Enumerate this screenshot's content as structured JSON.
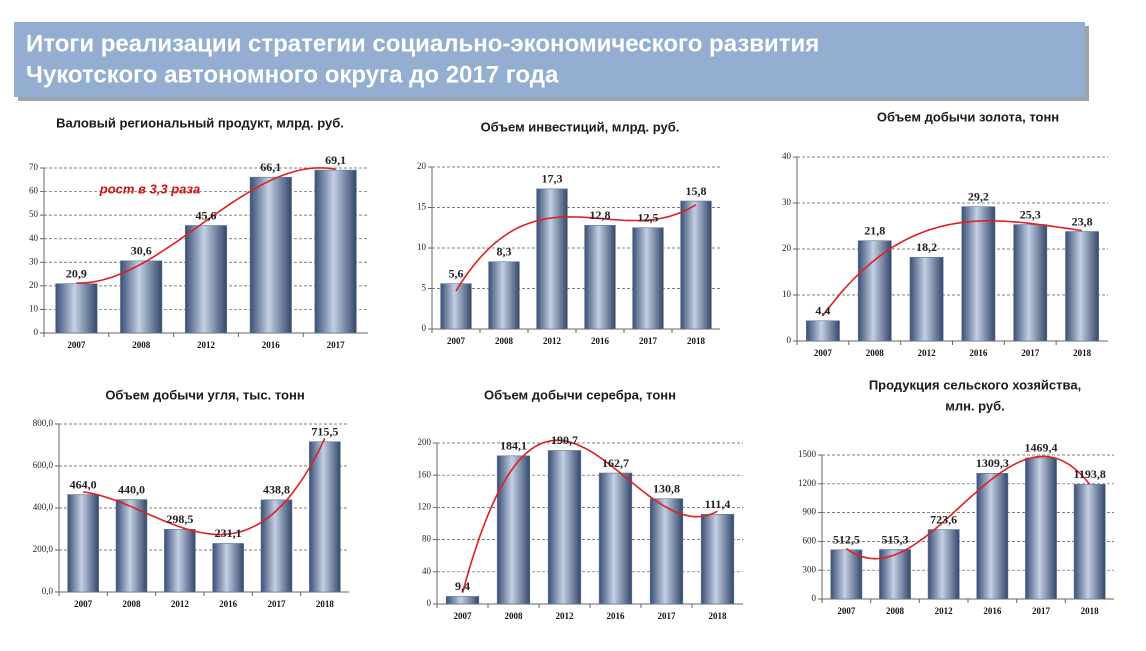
{
  "header": {
    "title": [
      "Итоги реализации стратегии социально-экономического развития",
      "Чукотского автономного округа до 2017 года"
    ]
  },
  "chart_data": [
    {
      "type": "bar",
      "title": "Валовый региональный продукт, млрд. руб.",
      "annotation": "рост в 3,3 раза",
      "categories": [
        "2007",
        "2008",
        "2012",
        "2016",
        "2017"
      ],
      "values": [
        20.9,
        30.6,
        45.6,
        66.1,
        69.1
      ],
      "value_labels": [
        "20,9",
        "30,6",
        "45,6",
        "66,1",
        "69,1"
      ],
      "ylim": [
        0,
        70
      ],
      "yticks": [
        0,
        10,
        20,
        30,
        40,
        50,
        60,
        70
      ],
      "grid": true,
      "trendline": true,
      "color": "#5b7298"
    },
    {
      "type": "bar",
      "title": "Объем инвестиций, млрд. руб.",
      "categories": [
        "2007",
        "2008",
        "2012",
        "2016",
        "2017",
        "2018"
      ],
      "values": [
        5.6,
        8.3,
        17.3,
        12.8,
        12.5,
        15.8
      ],
      "value_labels": [
        "5,6",
        "8,3",
        "17,3",
        "12,8",
        "12,5",
        "15,8"
      ],
      "ylim": [
        0,
        20
      ],
      "yticks": [
        0,
        5,
        10,
        15,
        20
      ],
      "grid": true,
      "trendline": true,
      "color": "#5b7298"
    },
    {
      "type": "bar",
      "title": "Объем добычи золота, тонн",
      "categories": [
        "2007",
        "2008",
        "2012",
        "2016",
        "2017",
        "2018"
      ],
      "values": [
        4.4,
        21.8,
        18.2,
        29.2,
        25.3,
        23.8
      ],
      "value_labels": [
        "4,4",
        "21,8",
        "18,2",
        "29,2",
        "25,3",
        "23,8"
      ],
      "ylim": [
        0,
        40
      ],
      "yticks": [
        0,
        10,
        20,
        30,
        40
      ],
      "grid": true,
      "trendline": true,
      "color": "#5b7298"
    },
    {
      "type": "bar",
      "title": "Объем добычи угля, тыс. тонн",
      "categories": [
        "2007",
        "2008",
        "2012",
        "2016",
        "2017",
        "2018"
      ],
      "values": [
        464.0,
        440.0,
        298.5,
        231.1,
        438.8,
        715.5
      ],
      "value_labels": [
        "464,0",
        "440,0",
        "298,5",
        "231,1",
        "438,8",
        "715,5"
      ],
      "ylim": [
        0,
        800
      ],
      "yticks": [
        {
          "value": 0,
          "label": "0,0"
        },
        {
          "value": 200,
          "label": "200,0"
        },
        {
          "value": 400,
          "label": "400,0"
        },
        {
          "value": 600,
          "label": "600,0"
        },
        {
          "value": 800,
          "label": "800,0"
        }
      ],
      "grid": true,
      "trendline": true,
      "color": "#5b7298"
    },
    {
      "type": "bar",
      "title": "Объем добычи серебра, тонн",
      "categories": [
        "2007",
        "2008",
        "2012",
        "2016",
        "2017",
        "2018"
      ],
      "values": [
        9.4,
        184.1,
        190.7,
        162.7,
        130.8,
        111.4
      ],
      "value_labels": [
        "9,4",
        "184,1",
        "190,7",
        "162,7",
        "130,8",
        "111,4"
      ],
      "ylim": [
        0,
        200
      ],
      "yticks": [
        0,
        40,
        80,
        120,
        160,
        200
      ],
      "grid": true,
      "trendline": true,
      "color": "#5b7298"
    },
    {
      "type": "bar",
      "title": [
        "Продукция сельского хозяйства,",
        "млн. руб."
      ],
      "categories": [
        "2007",
        "2008",
        "2012",
        "2016",
        "2017",
        "2018"
      ],
      "values": [
        512.5,
        515.3,
        723.6,
        1309.3,
        1469.4,
        1193.8
      ],
      "value_labels": [
        "512,5",
        "515,3",
        "723,6",
        "1309,3",
        "1469,4",
        "1193,8"
      ],
      "ylim": [
        0,
        1500
      ],
      "yticks": [
        0,
        300,
        600,
        900,
        1200,
        1500
      ],
      "grid": true,
      "trendline": true,
      "color": "#5b7298"
    }
  ]
}
